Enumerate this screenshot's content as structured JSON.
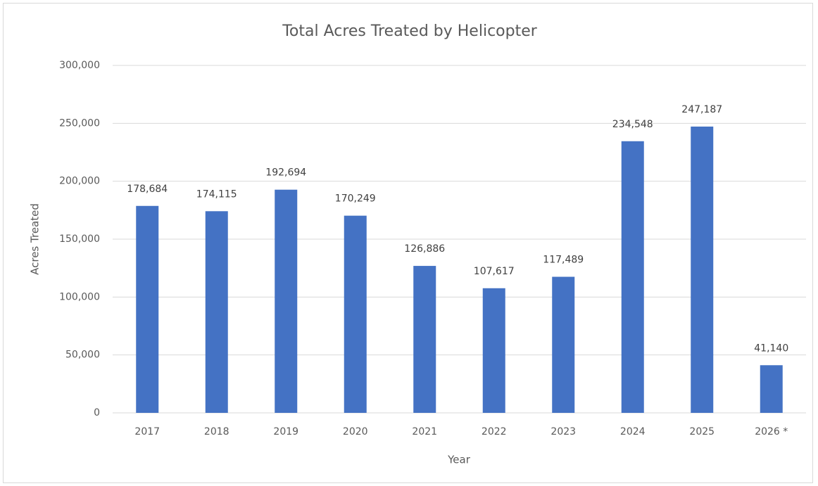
{
  "chart_data": {
    "type": "bar",
    "title": "Total Acres Treated by Helicopter",
    "x_label": "Year",
    "y_label": "Acres Treated",
    "categories": [
      "2017",
      "2018",
      "2019",
      "2020",
      "2021",
      "2022",
      "2023",
      "2024",
      "2025",
      "2026 *"
    ],
    "values": [
      178684,
      174115,
      192694,
      170249,
      126886,
      107617,
      117489,
      234548,
      247187,
      41140
    ],
    "value_labels": [
      "178,684",
      "174,115",
      "192,694",
      "170,249",
      "126,886",
      "107,617",
      "117,489",
      "234,548",
      "247,187",
      "41,140"
    ],
    "color": "#4472c4",
    "ylim": [
      0,
      300000
    ],
    "yticks": [
      0,
      {
        "value": 50000,
        "label": "50,000"
      },
      {
        "value": 100000,
        "label": "100,000"
      },
      {
        "value": 150000,
        "label": "150,000"
      },
      {
        "value": 200000,
        "label": "200,000"
      },
      {
        "value": 250000,
        "label": "250,000"
      },
      {
        "value": 300000,
        "label": "300,000"
      }
    ],
    "grid": true
  }
}
